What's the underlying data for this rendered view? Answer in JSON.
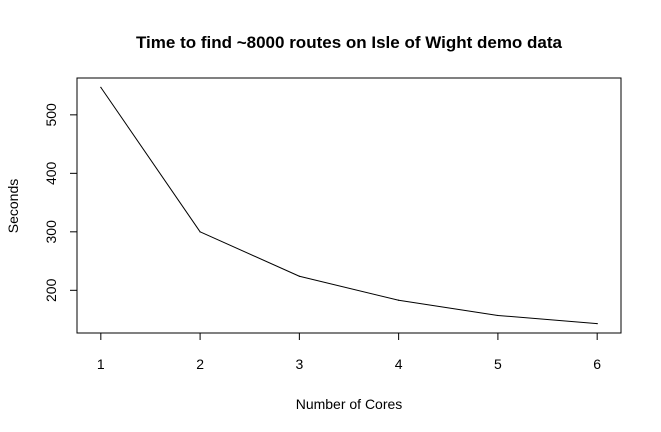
{
  "chart_data": {
    "type": "line",
    "title": "Time to find ~8000 routes on Isle of Wight demo data",
    "xlabel": "Number of Cores",
    "ylabel": "Seconds",
    "x": [
      1,
      2,
      3,
      4,
      5,
      6
    ],
    "series": [
      {
        "values": [
          547,
          300,
          224,
          183,
          157,
          143
        ]
      }
    ],
    "xlim": [
      0.76,
      6.24
    ],
    "ylim": [
      127,
      563
    ],
    "x_ticks": [
      1,
      2,
      3,
      4,
      5,
      6
    ],
    "y_ticks": [
      200,
      300,
      400,
      500
    ],
    "x_tick_labels": [
      "1",
      "2",
      "3",
      "4",
      "5",
      "6"
    ],
    "y_tick_labels": [
      "200",
      "300",
      "400",
      "500"
    ],
    "grid": false,
    "line_color": "#000000",
    "frame": "box"
  }
}
